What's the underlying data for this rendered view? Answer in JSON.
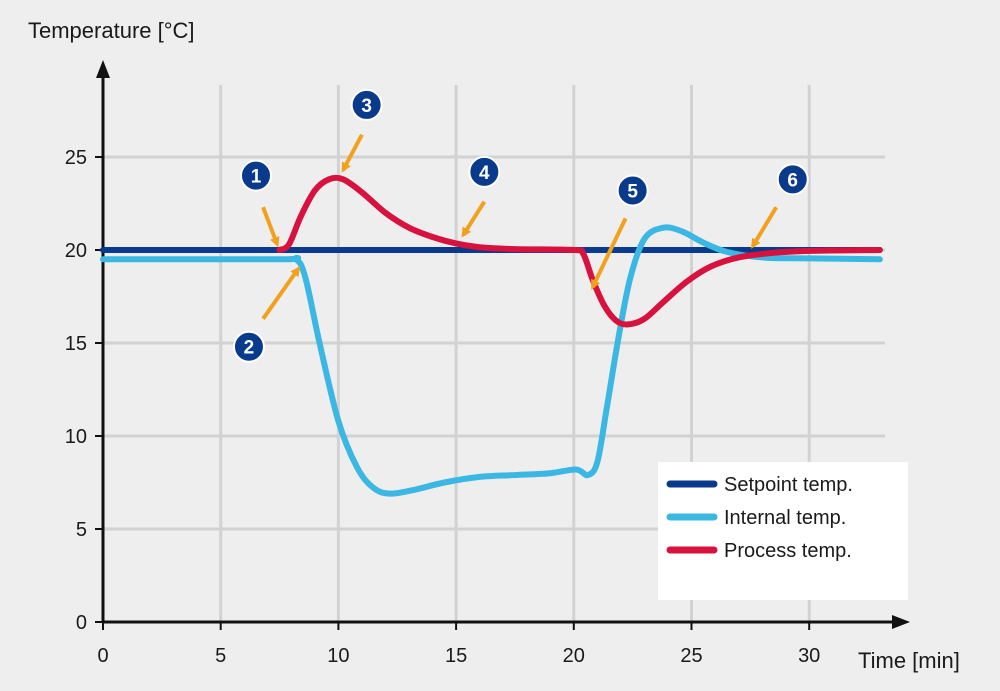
{
  "chart_data": {
    "type": "line",
    "ylabel": "Temperature [°C]",
    "xlabel": "Time [min]",
    "xlim": [
      0,
      33
    ],
    "ylim": [
      0,
      28
    ],
    "x_ticks": [
      0,
      5,
      10,
      15,
      20,
      25,
      30
    ],
    "y_ticks": [
      0,
      5,
      10,
      15,
      20,
      25
    ],
    "grid": true,
    "legend_position": "bottom-right",
    "series": [
      {
        "name": "Setpoint temp.",
        "color": "#0a3a8c",
        "points": [
          [
            0,
            20
          ],
          [
            33,
            20
          ]
        ]
      },
      {
        "name": "Internal temp.",
        "color": "#3bb7e3",
        "points": [
          [
            0,
            19.5
          ],
          [
            7.5,
            19.5
          ],
          [
            8.2,
            19.5
          ],
          [
            8.6,
            18.5
          ],
          [
            9.2,
            15
          ],
          [
            10,
            10.8
          ],
          [
            10.8,
            8.3
          ],
          [
            11.5,
            7.2
          ],
          [
            12.2,
            6.9
          ],
          [
            13.2,
            7.1
          ],
          [
            14.5,
            7.5
          ],
          [
            16,
            7.8
          ],
          [
            17.5,
            7.9
          ],
          [
            19,
            8.0
          ],
          [
            20.1,
            8.2
          ],
          [
            20.6,
            7.9
          ],
          [
            21.0,
            8.6
          ],
          [
            21.4,
            11.5
          ],
          [
            21.9,
            15.3
          ],
          [
            22.4,
            18.5
          ],
          [
            23.0,
            20.6
          ],
          [
            23.8,
            21.2
          ],
          [
            24.6,
            21.0
          ],
          [
            25.5,
            20.4
          ],
          [
            26.5,
            19.9
          ],
          [
            28,
            19.6
          ],
          [
            30,
            19.55
          ],
          [
            33,
            19.5
          ]
        ]
      },
      {
        "name": "Process temp.",
        "color": "#d8123f",
        "points": [
          [
            7.5,
            20
          ],
          [
            7.9,
            20.3
          ],
          [
            8.4,
            21.8
          ],
          [
            9.0,
            23.2
          ],
          [
            9.6,
            23.8
          ],
          [
            10.2,
            23.8
          ],
          [
            11,
            23.1
          ],
          [
            12,
            22.0
          ],
          [
            13,
            21.2
          ],
          [
            14,
            20.7
          ],
          [
            15,
            20.35
          ],
          [
            16,
            20.15
          ],
          [
            17.5,
            20.05
          ],
          [
            20,
            20
          ],
          [
            20.4,
            19.8
          ],
          [
            20.8,
            18.4
          ],
          [
            21.3,
            17.0
          ],
          [
            21.8,
            16.2
          ],
          [
            22.3,
            16.0
          ],
          [
            23,
            16.3
          ],
          [
            23.8,
            17.2
          ],
          [
            24.8,
            18.3
          ],
          [
            25.8,
            19.1
          ],
          [
            27,
            19.6
          ],
          [
            28.5,
            19.85
          ],
          [
            30,
            19.95
          ],
          [
            33,
            20
          ]
        ]
      }
    ],
    "annotations": [
      {
        "label": "1",
        "badge": [
          6.5,
          24.0
        ],
        "arrow_from": [
          6.8,
          22.3
        ],
        "arrow_to": [
          7.4,
          20.3
        ]
      },
      {
        "label": "2",
        "badge": [
          6.2,
          14.8
        ],
        "arrow_from": [
          6.8,
          16.3
        ],
        "arrow_to": [
          8.3,
          19.0
        ]
      },
      {
        "label": "3",
        "badge": [
          11.2,
          27.8
        ],
        "arrow_from": [
          11.0,
          26.2
        ],
        "arrow_to": [
          10.2,
          24.3
        ]
      },
      {
        "label": "4",
        "badge": [
          16.2,
          24.2
        ],
        "arrow_from": [
          16.2,
          22.6
        ],
        "arrow_to": [
          15.3,
          20.8
        ]
      },
      {
        "label": "5",
        "badge": [
          22.5,
          23.2
        ],
        "arrow_from": [
          22.2,
          21.7
        ],
        "arrow_to": [
          20.8,
          18.0
        ]
      },
      {
        "label": "6",
        "badge": [
          29.3,
          23.8
        ],
        "arrow_from": [
          28.6,
          22.3
        ],
        "arrow_to": [
          27.6,
          20.2
        ]
      }
    ]
  }
}
